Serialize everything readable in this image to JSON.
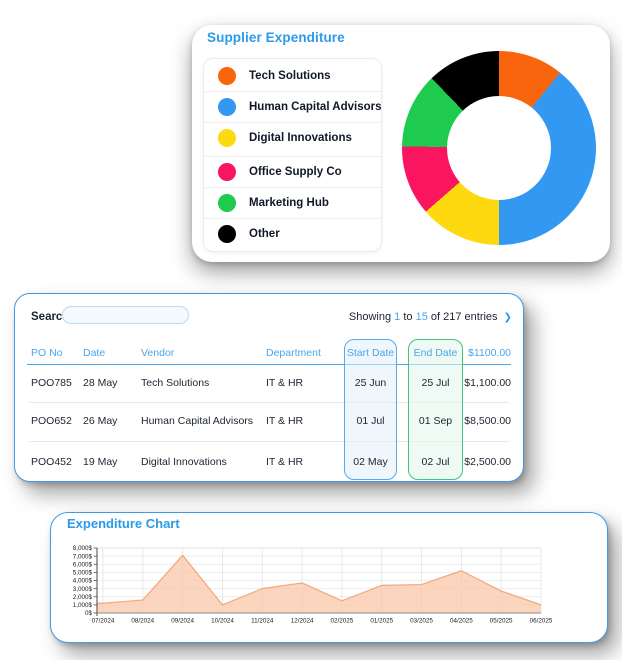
{
  "supplier_card": {
    "title": "Supplier Expenditure",
    "legend": [
      {
        "label": "Tech Solutions",
        "color": "#F8650C"
      },
      {
        "label": "Human Capital Advisors",
        "color": "#3398F2"
      },
      {
        "label": "Digital Innovations",
        "color": "#FFD90F"
      },
      {
        "label": "Office Supply Co",
        "color": "#F9155F"
      },
      {
        "label": "Marketing Hub",
        "color": "#1ECB4F"
      },
      {
        "label": "Other",
        "color": "#000000"
      }
    ]
  },
  "table_card": {
    "search_label": "Search",
    "search_value": "",
    "search_placeholder": "",
    "showing": {
      "prefix": "Showing",
      "from": "1",
      "to_word": "to",
      "to": "15",
      "suffix": "of 217 entries",
      "chevron": "❯"
    },
    "columns": [
      "PO No",
      "Date",
      "Vendor",
      "Department",
      "Start Date",
      "End Date",
      "$1100.00"
    ],
    "rows": [
      [
        "POO785",
        "28 May",
        "Tech Solutions",
        "IT & HR",
        "25 Jun",
        "25 Jul",
        "$1,100.00"
      ],
      [
        "POO652",
        "26 May",
        "Human Capital Advisors",
        "IT & HR",
        "01 Jul",
        "01 Sep",
        "$8,500.00"
      ],
      [
        "POO452",
        "19 May",
        "Digital Innovations",
        "IT & HR",
        "02 May",
        "02 Jul",
        "$2,500.00"
      ]
    ]
  },
  "expenditure_card": {
    "title": "Expenditure Chart"
  },
  "chart_data": [
    {
      "type": "pie",
      "title": "Supplier Expenditure",
      "labels": [
        "Tech Solutions",
        "Human Capital Advisors",
        "Digital Innovations",
        "Office Supply Co",
        "Marketing Hub",
        "Other"
      ],
      "values_pct": [
        10.8,
        39.2,
        13.6,
        11.7,
        12.5,
        12.2
      ],
      "values_deg": [
        39,
        141,
        49,
        42,
        45,
        44
      ],
      "colors": [
        "#F8650C",
        "#3398F2",
        "#FFD90F",
        "#F9155F",
        "#1ECB4F",
        "#000000"
      ],
      "hole_pct": 54,
      "legend_position": "left"
    },
    {
      "type": "area",
      "title": "Expenditure Chart",
      "x": [
        "07/2024",
        "08/2024",
        "09/2024",
        "10/2024",
        "11/2024",
        "12/2024",
        "02/2025",
        "01/2025",
        "03/2025",
        "04/2025",
        "05/2025",
        "06/2025"
      ],
      "values": [
        1200,
        1600,
        7100,
        1000,
        3000,
        3700,
        1500,
        3400,
        3500,
        5200,
        2700,
        1000
      ],
      "xlabel": "",
      "ylabel": "",
      "ylim": [
        0,
        8000
      ],
      "ytick_step": 1000,
      "ytick_suffix": "$",
      "grid": true,
      "fill": "#F9C7A8",
      "stroke": "#F0A87E"
    }
  ],
  "colors": {
    "accent_blue": "#2B9AE9",
    "header_blue": "#4AA6EC",
    "card_border": "#3D9BE9",
    "start_col_border": "#58A9E9",
    "end_col_border": "#43C380"
  }
}
